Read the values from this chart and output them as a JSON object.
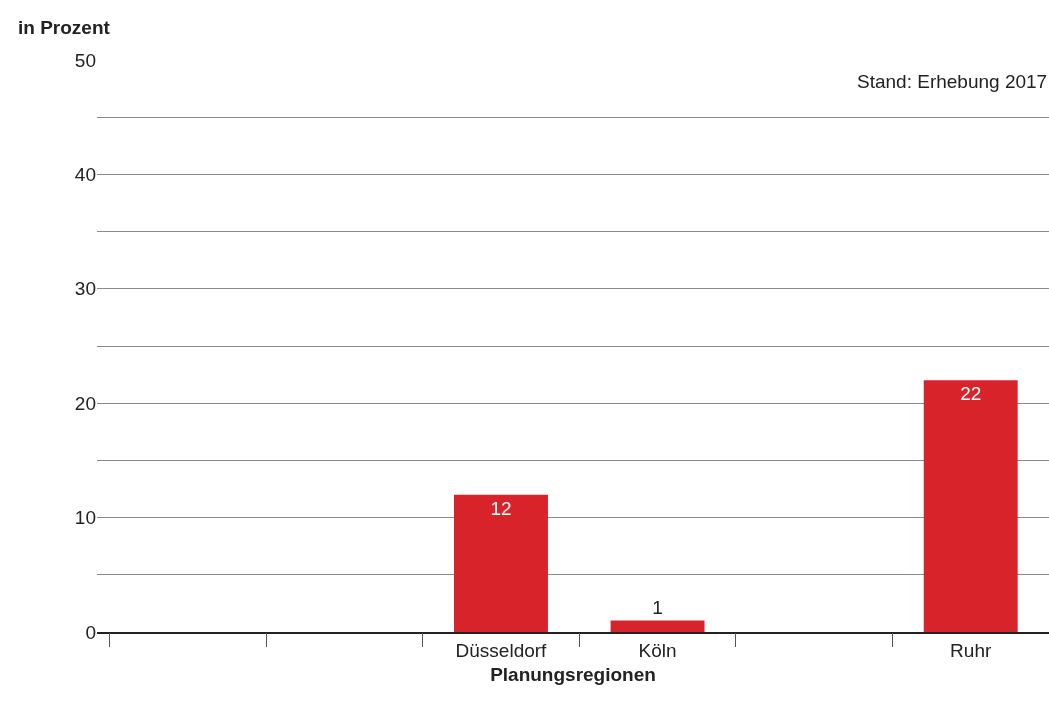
{
  "chart_data": {
    "type": "bar",
    "ylabel": "in Prozent",
    "xlabel": "Planungsregionen",
    "categories": [
      null,
      null,
      "Düsseldorf",
      "Köln",
      null,
      "Ruhr"
    ],
    "values": [
      null,
      null,
      12,
      1,
      null,
      22
    ],
    "color": "#d9232a",
    "data_labels": true,
    "ylim": [
      0,
      50
    ],
    "yticks": [
      0,
      {
        "value": 5,
        "label": null
      },
      10,
      {
        "value": 15,
        "label": null
      },
      20,
      {
        "value": 25,
        "label": null
      },
      30,
      {
        "value": 35,
        "label": null
      },
      40,
      {
        "value": 45,
        "label": null
      },
      50
    ],
    "grid": "y",
    "legend": false,
    "annotations": [
      "Stand: Erhebung 2017"
    ]
  }
}
